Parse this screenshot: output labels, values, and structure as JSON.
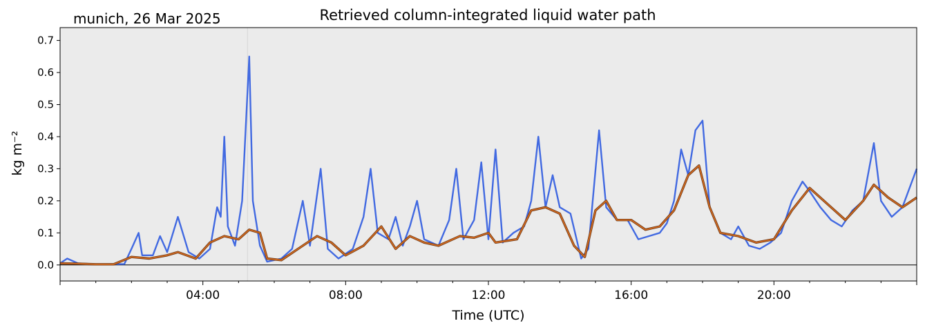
{
  "header": {
    "site_date": "munich, 26 Mar 2025",
    "title": "Retrieved column-integrated liquid water path"
  },
  "chart_data": {
    "type": "line",
    "title": "Retrieved column-integrated liquid water path",
    "subtitle": "munich, 26 Mar 2025",
    "xlabel": "Time (UTC)",
    "ylabel": "kg m⁻²",
    "xlim_hours": [
      0,
      24
    ],
    "ylim": [
      -0.05,
      0.74
    ],
    "x_ticks": [
      {
        "hour": 4,
        "label": "04:00"
      },
      {
        "hour": 8,
        "label": "08:00"
      },
      {
        "hour": 12,
        "label": "12:00"
      },
      {
        "hour": 16,
        "label": "16:00"
      },
      {
        "hour": 20,
        "label": "20:00"
      }
    ],
    "y_ticks": [
      {
        "value": 0.0,
        "label": "0.0"
      },
      {
        "value": 0.1,
        "label": "0.1"
      },
      {
        "value": 0.2,
        "label": "0.2"
      },
      {
        "value": 0.3,
        "label": "0.3"
      },
      {
        "value": 0.4,
        "label": "0.4"
      },
      {
        "value": 0.5,
        "label": "0.5"
      },
      {
        "value": 0.6,
        "label": "0.6"
      },
      {
        "value": 0.7,
        "label": "0.7"
      }
    ],
    "zero_line": 0.0,
    "grid": false,
    "background_color": "#ebebeb",
    "series": [
      {
        "role": "raw retrievals",
        "color": "#4169e1",
        "points": [
          [
            0.0,
            0.005
          ],
          [
            0.2,
            0.02
          ],
          [
            0.5,
            0.005
          ],
          [
            1.0,
            0.002
          ],
          [
            1.8,
            0.003
          ],
          [
            2.0,
            0.05
          ],
          [
            2.2,
            0.1
          ],
          [
            2.3,
            0.03
          ],
          [
            2.6,
            0.03
          ],
          [
            2.8,
            0.09
          ],
          [
            3.0,
            0.04
          ],
          [
            3.3,
            0.15
          ],
          [
            3.6,
            0.04
          ],
          [
            3.9,
            0.02
          ],
          [
            4.2,
            0.05
          ],
          [
            4.4,
            0.18
          ],
          [
            4.5,
            0.15
          ],
          [
            4.6,
            0.4
          ],
          [
            4.7,
            0.12
          ],
          [
            4.9,
            0.06
          ],
          [
            5.1,
            0.2
          ],
          [
            5.3,
            0.65
          ],
          [
            5.4,
            0.2
          ],
          [
            5.6,
            0.06
          ],
          [
            5.8,
            0.01
          ],
          [
            6.2,
            0.02
          ],
          [
            6.5,
            0.05
          ],
          [
            6.8,
            0.2
          ],
          [
            7.0,
            0.06
          ],
          [
            7.3,
            0.3
          ],
          [
            7.5,
            0.05
          ],
          [
            7.8,
            0.02
          ],
          [
            8.2,
            0.05
          ],
          [
            8.5,
            0.15
          ],
          [
            8.7,
            0.3
          ],
          [
            8.9,
            0.1
          ],
          [
            9.2,
            0.08
          ],
          [
            9.4,
            0.15
          ],
          [
            9.6,
            0.06
          ],
          [
            9.8,
            0.12
          ],
          [
            10.0,
            0.2
          ],
          [
            10.2,
            0.08
          ],
          [
            10.6,
            0.06
          ],
          [
            10.9,
            0.14
          ],
          [
            11.1,
            0.3
          ],
          [
            11.3,
            0.08
          ],
          [
            11.6,
            0.14
          ],
          [
            11.8,
            0.32
          ],
          [
            12.0,
            0.08
          ],
          [
            12.2,
            0.36
          ],
          [
            12.4,
            0.07
          ],
          [
            12.7,
            0.1
          ],
          [
            13.0,
            0.12
          ],
          [
            13.2,
            0.2
          ],
          [
            13.4,
            0.4
          ],
          [
            13.6,
            0.18
          ],
          [
            13.8,
            0.28
          ],
          [
            14.0,
            0.18
          ],
          [
            14.3,
            0.16
          ],
          [
            14.6,
            0.02
          ],
          [
            14.8,
            0.05
          ],
          [
            15.1,
            0.42
          ],
          [
            15.3,
            0.18
          ],
          [
            15.6,
            0.14
          ],
          [
            15.9,
            0.14
          ],
          [
            16.2,
            0.08
          ],
          [
            16.5,
            0.09
          ],
          [
            16.8,
            0.1
          ],
          [
            17.0,
            0.13
          ],
          [
            17.2,
            0.2
          ],
          [
            17.4,
            0.36
          ],
          [
            17.6,
            0.28
          ],
          [
            17.8,
            0.42
          ],
          [
            18.0,
            0.45
          ],
          [
            18.2,
            0.18
          ],
          [
            18.5,
            0.1
          ],
          [
            18.8,
            0.08
          ],
          [
            19.0,
            0.12
          ],
          [
            19.3,
            0.06
          ],
          [
            19.6,
            0.05
          ],
          [
            19.9,
            0.07
          ],
          [
            20.2,
            0.1
          ],
          [
            20.5,
            0.2
          ],
          [
            20.8,
            0.26
          ],
          [
            21.0,
            0.23
          ],
          [
            21.3,
            0.18
          ],
          [
            21.6,
            0.14
          ],
          [
            21.9,
            0.12
          ],
          [
            22.2,
            0.17
          ],
          [
            22.5,
            0.2
          ],
          [
            22.8,
            0.38
          ],
          [
            23.0,
            0.2
          ],
          [
            23.3,
            0.15
          ],
          [
            23.6,
            0.18
          ],
          [
            24.0,
            0.3
          ]
        ]
      },
      {
        "role": "smoothed",
        "color": "#d2691e",
        "points": [
          [
            0.0,
            0.005
          ],
          [
            0.5,
            0.004
          ],
          [
            1.0,
            0.002
          ],
          [
            1.5,
            0.002
          ],
          [
            2.0,
            0.025
          ],
          [
            2.5,
            0.02
          ],
          [
            3.0,
            0.03
          ],
          [
            3.3,
            0.04
          ],
          [
            3.8,
            0.02
          ],
          [
            4.2,
            0.07
          ],
          [
            4.6,
            0.09
          ],
          [
            5.0,
            0.08
          ],
          [
            5.3,
            0.11
          ],
          [
            5.6,
            0.1
          ],
          [
            5.8,
            0.02
          ],
          [
            6.2,
            0.015
          ],
          [
            6.8,
            0.06
          ],
          [
            7.2,
            0.09
          ],
          [
            7.6,
            0.07
          ],
          [
            8.0,
            0.03
          ],
          [
            8.5,
            0.06
          ],
          [
            9.0,
            0.12
          ],
          [
            9.4,
            0.05
          ],
          [
            9.8,
            0.09
          ],
          [
            10.2,
            0.07
          ],
          [
            10.6,
            0.06
          ],
          [
            11.2,
            0.09
          ],
          [
            11.6,
            0.085
          ],
          [
            12.0,
            0.1
          ],
          [
            12.2,
            0.07
          ],
          [
            12.8,
            0.08
          ],
          [
            13.2,
            0.17
          ],
          [
            13.6,
            0.18
          ],
          [
            14.0,
            0.16
          ],
          [
            14.4,
            0.06
          ],
          [
            14.7,
            0.025
          ],
          [
            15.0,
            0.17
          ],
          [
            15.3,
            0.2
          ],
          [
            15.6,
            0.14
          ],
          [
            16.0,
            0.14
          ],
          [
            16.4,
            0.11
          ],
          [
            16.8,
            0.12
          ],
          [
            17.2,
            0.17
          ],
          [
            17.6,
            0.28
          ],
          [
            17.9,
            0.31
          ],
          [
            18.2,
            0.18
          ],
          [
            18.5,
            0.1
          ],
          [
            19.0,
            0.09
          ],
          [
            19.5,
            0.07
          ],
          [
            20.0,
            0.08
          ],
          [
            20.5,
            0.17
          ],
          [
            21.0,
            0.24
          ],
          [
            21.5,
            0.19
          ],
          [
            22.0,
            0.14
          ],
          [
            22.5,
            0.2
          ],
          [
            22.8,
            0.25
          ],
          [
            23.2,
            0.21
          ],
          [
            23.6,
            0.18
          ],
          [
            24.0,
            0.21
          ]
        ]
      }
    ],
    "highlight_time_hours": 5.25
  }
}
